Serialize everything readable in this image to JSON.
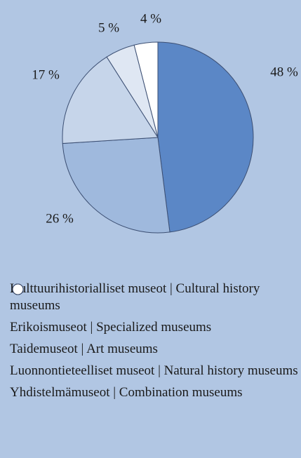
{
  "chart_data": {
    "type": "pie",
    "categories": [
      "Kulttuurihistorialliset museot | Cultural history museums",
      "Erikoismuseot | Specialized museums",
      "Taidemuseot | Art museums",
      "Luonnontieteelliset museot | Natural history museums",
      "Yhdistelmämuseot | Combination museums"
    ],
    "values": [
      48,
      26,
      17,
      5,
      4
    ],
    "value_labels": [
      "48 %",
      "26 %",
      "17 %",
      "5 %",
      "4 %"
    ],
    "colors": [
      "#5b87c6",
      "#9fb9dd",
      "#c6d5ea",
      "#dfe7f3",
      "#ffffff"
    ]
  }
}
